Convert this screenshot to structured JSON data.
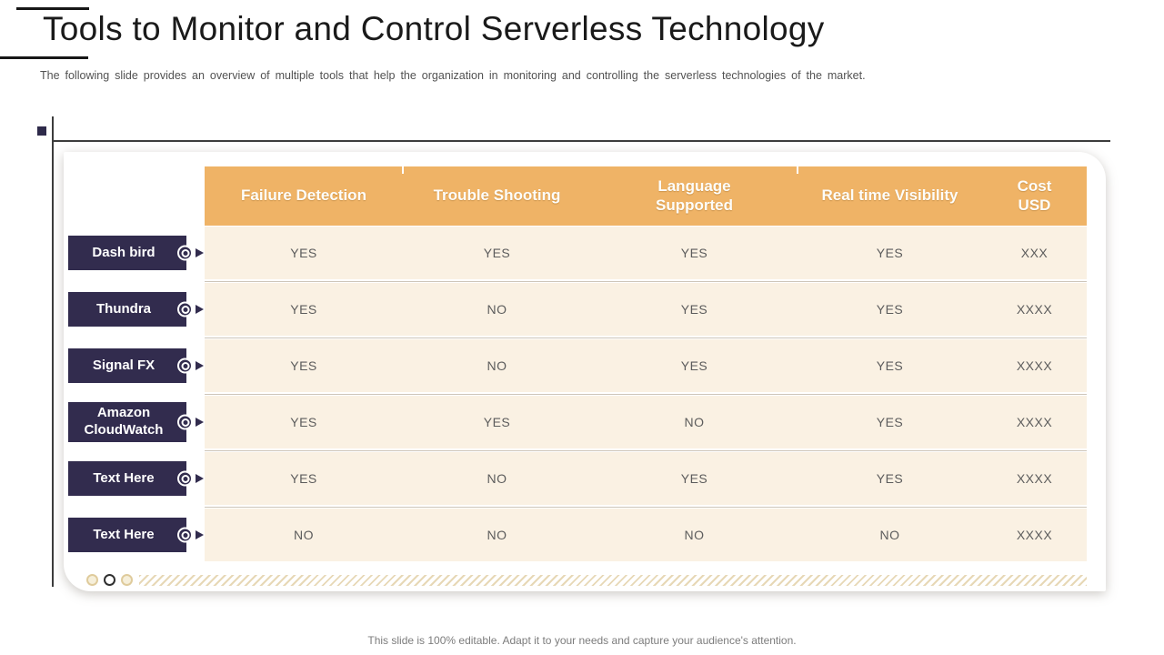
{
  "slide": {
    "title": "Tools to Monitor and Control Serverless Technology",
    "subtitle": "The following slide provides an overview  of  multiple tools that help the organization in monitoring and controlling the serverless  technologies of the market.",
    "footer_note": "This slide is 100% editable. Adapt it to your needs and capture your audience's attention."
  },
  "table": {
    "columns": [
      "Failure Detection",
      "Trouble Shooting",
      "Language Supported",
      "Real time Visibility",
      "Cost USD"
    ],
    "rows": [
      {
        "label": "Dash bird",
        "values": [
          "YES",
          "YES",
          "YES",
          "YES",
          "XXX"
        ]
      },
      {
        "label": "Thundra",
        "values": [
          "YES",
          "NO",
          "YES",
          "YES",
          "XXXX"
        ]
      },
      {
        "label": "Signal FX",
        "values": [
          "YES",
          "NO",
          "YES",
          "YES",
          "XXXX"
        ]
      },
      {
        "label": "Amazon CloudWatch",
        "values": [
          "YES",
          "YES",
          "NO",
          "YES",
          "XXXX"
        ]
      },
      {
        "label": "Text Here",
        "values": [
          "YES",
          "NO",
          "YES",
          "YES",
          "XXXX"
        ]
      },
      {
        "label": "Text Here",
        "values": [
          "NO",
          "NO",
          "NO",
          "NO",
          "XXXX"
        ]
      }
    ]
  },
  "pagination": {
    "dot_count": 3,
    "active_index": 1
  },
  "colors": {
    "header_orange": "#efb366",
    "row_cream": "#faf1e3",
    "label_navy": "#322c4e",
    "hatch_tan": "#e7d8b6",
    "frame_line": "#3c3c3c"
  }
}
